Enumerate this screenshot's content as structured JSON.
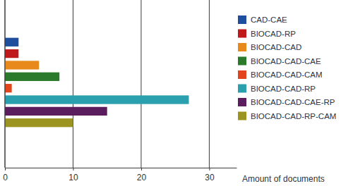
{
  "chart_data": {
    "type": "bar",
    "orientation": "horizontal",
    "x_label": "Amount of documents",
    "categories": [
      "CAD-CAE",
      "BIOCAD-RP",
      "BIOCAD-CAD",
      "BIOCAD-CAD-CAE",
      "BIOCAD-CAD-CAM",
      "BIOCAD-CAD-RP",
      "BIOCAD-CAD-CAE-RP",
      "BIOCAD-CAD-RP-CAM"
    ],
    "values": [
      2,
      2,
      5,
      8,
      1,
      27,
      15,
      10
    ],
    "colors": [
      "#1f4e9e",
      "#c0191c",
      "#e8891b",
      "#2b7a2b",
      "#e3441b",
      "#2a9fad",
      "#5b1d5e",
      "#9c9420"
    ],
    "xlim": [
      0,
      34
    ],
    "xticks": [
      0,
      10,
      20,
      30
    ],
    "grid": true,
    "legend": "right",
    "tick_labels": "x"
  }
}
